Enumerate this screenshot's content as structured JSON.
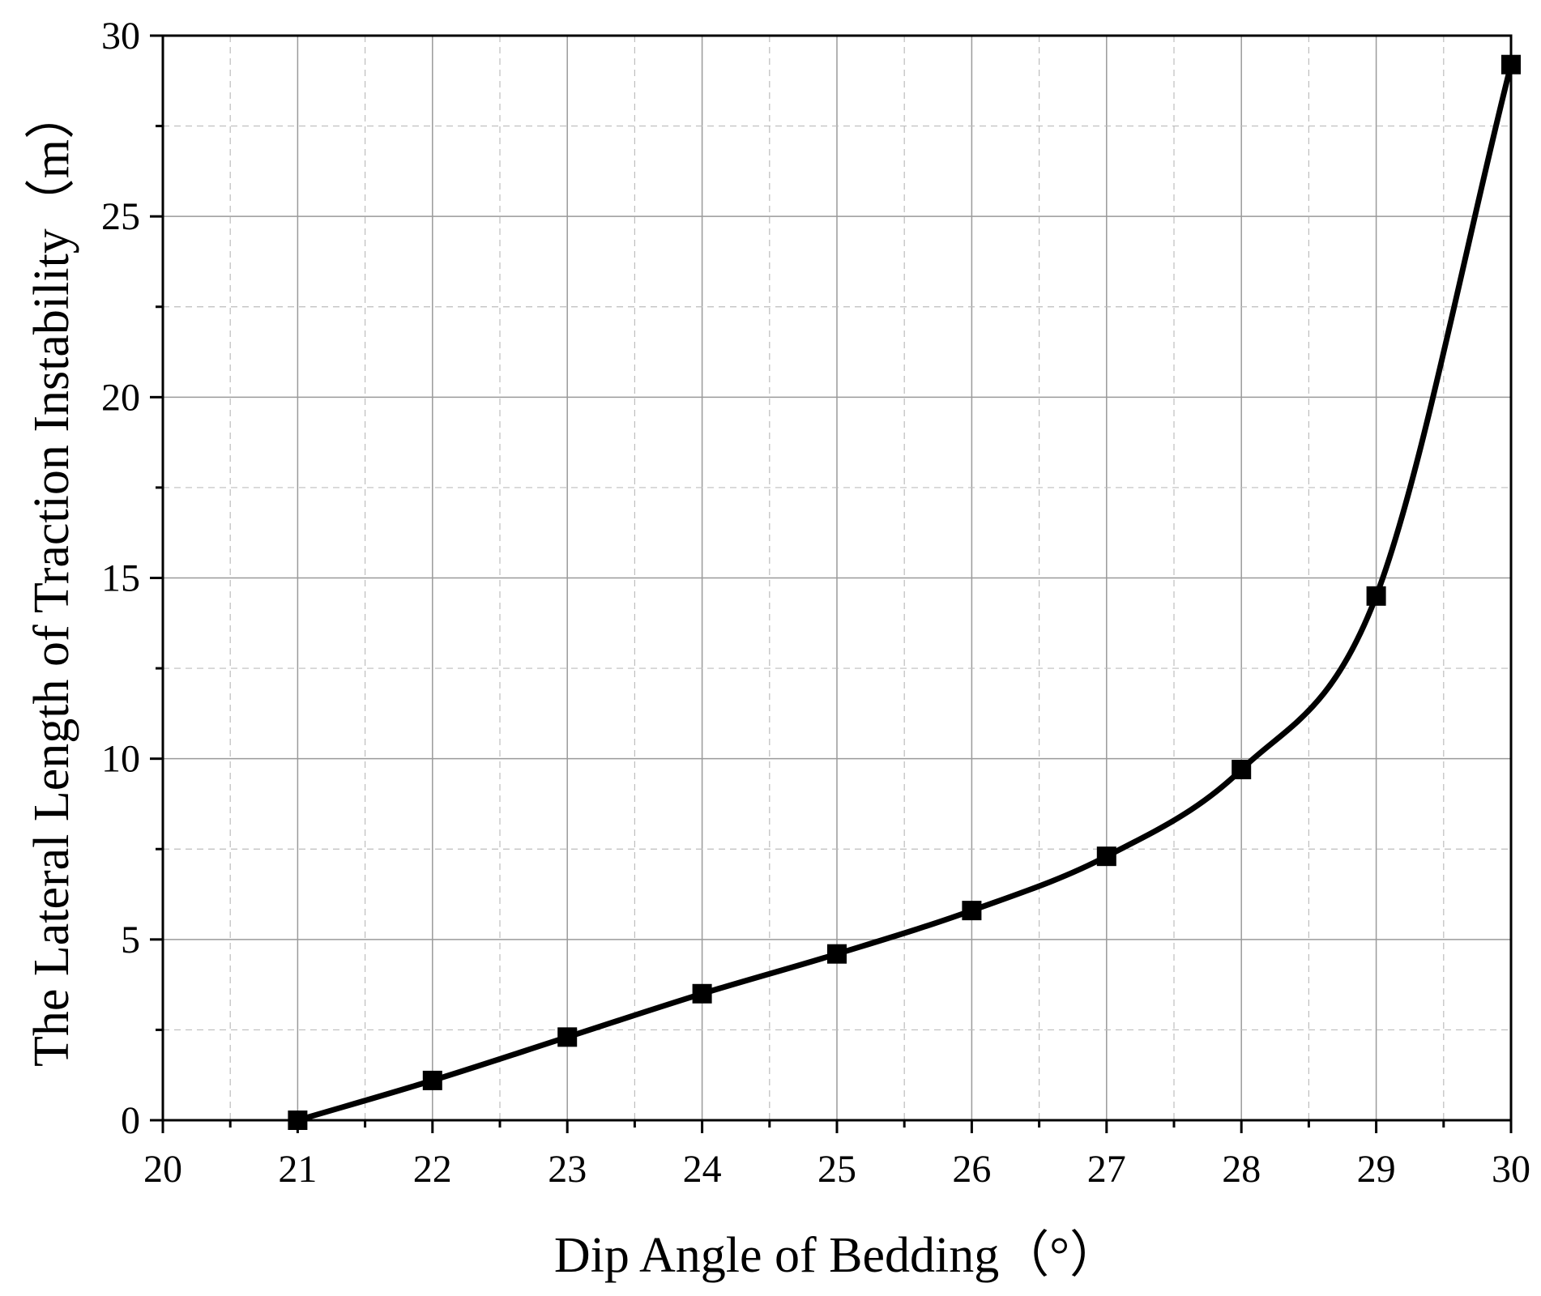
{
  "chart_data": {
    "type": "line",
    "title": "",
    "xlabel": "Dip Angle of Bedding（°）",
    "ylabel": "The Lateral Length of Traction Instability（m）",
    "xlim": [
      20,
      30
    ],
    "ylim": [
      0,
      30
    ],
    "x_ticks": [
      20,
      21,
      22,
      23,
      24,
      25,
      26,
      27,
      28,
      29,
      30
    ],
    "y_ticks": [
      0,
      5,
      10,
      15,
      20,
      25,
      30
    ],
    "grid": true,
    "legend": "none",
    "marker": "square",
    "line_color": "#000000",
    "series": [
      {
        "x": [
          21,
          22,
          23,
          24,
          25,
          26,
          27,
          28,
          29,
          30
        ],
        "y": [
          0.0,
          1.1,
          2.3,
          3.5,
          4.6,
          5.8,
          7.3,
          9.7,
          14.5,
          29.2
        ]
      }
    ]
  }
}
